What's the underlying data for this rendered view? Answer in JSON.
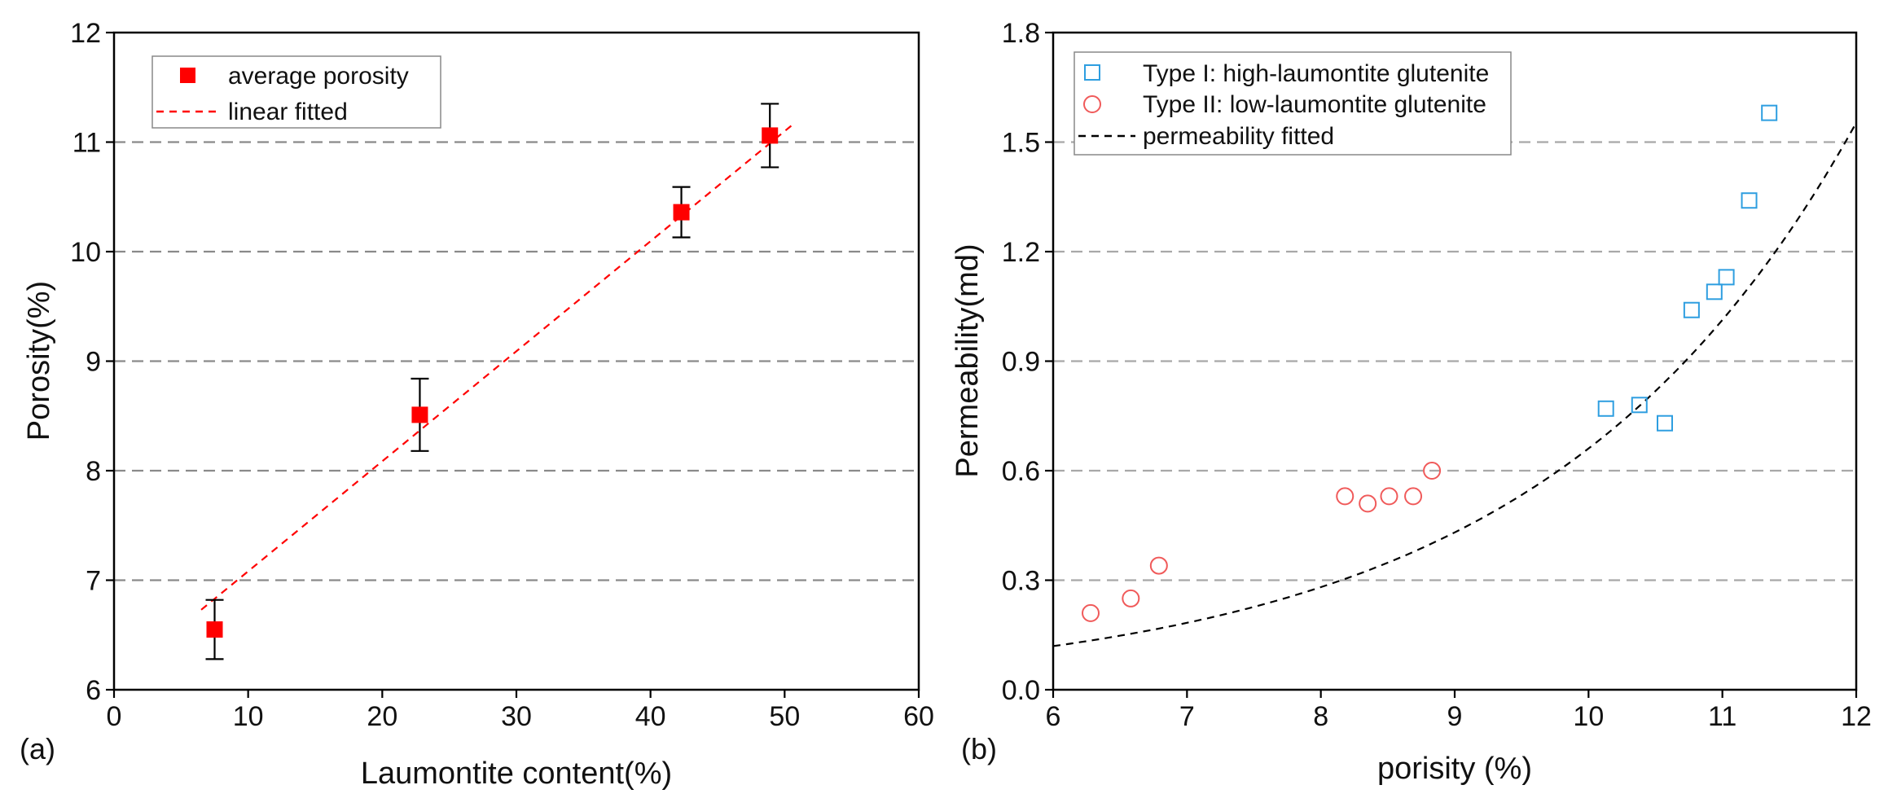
{
  "chart_data": [
    {
      "type": "scatter",
      "panel_label": "(a)",
      "xlabel": "Laumontite content(%)",
      "ylabel": "Porosity(%)",
      "xlim": [
        0,
        60
      ],
      "ylim": [
        6,
        12
      ],
      "xticks": [
        "0",
        "10",
        "20",
        "30",
        "40",
        "50",
        "60"
      ],
      "yticks": [
        "6",
        "7",
        "8",
        "9",
        "10",
        "11",
        "12"
      ],
      "grid": "horizontal dashed",
      "legend_position": "top-left",
      "series": [
        {
          "name": "average porosity",
          "marker": "filled-square",
          "color": "#ff0000",
          "x": [
            7.5,
            22.8,
            42.3,
            48.9
          ],
          "y": [
            6.55,
            8.51,
            10.36,
            11.06
          ],
          "error": [
            0.27,
            0.33,
            0.23,
            0.29
          ]
        },
        {
          "name": "linear fitted",
          "style": "dashed",
          "color": "#ff0000",
          "x": [
            6.5,
            50.8
          ],
          "y": [
            6.73,
            11.18
          ]
        }
      ]
    },
    {
      "type": "scatter",
      "panel_label": "(b)",
      "xlabel": "porisity (%)",
      "ylabel": "Permeability(md)",
      "xlim": [
        6,
        12
      ],
      "ylim": [
        0,
        1.8
      ],
      "xticks": [
        "6",
        "7",
        "8",
        "9",
        "10",
        "11",
        "12"
      ],
      "yticks": [
        "0.0",
        "0.3",
        "0.6",
        "0.9",
        "1.2",
        "1.5",
        "1.8"
      ],
      "grid": "horizontal dashed",
      "legend_position": "top-left",
      "series": [
        {
          "name": "Type I: high-laumontite glutenite",
          "marker": "open-square",
          "color": "#2e9ee0",
          "x": [
            10.13,
            10.38,
            10.57,
            10.77,
            10.94,
            11.03,
            11.2,
            11.35
          ],
          "y": [
            0.77,
            0.78,
            0.73,
            1.04,
            1.09,
            1.13,
            1.34,
            1.58
          ]
        },
        {
          "name": "Type II: low-laumontite glutenite",
          "marker": "open-circle",
          "color": "#f05a5a",
          "x": [
            6.28,
            6.58,
            6.79,
            8.18,
            8.35,
            8.51,
            8.69,
            8.83
          ],
          "y": [
            0.21,
            0.25,
            0.34,
            0.53,
            0.51,
            0.53,
            0.53,
            0.6
          ]
        },
        {
          "name": "permeability fitted",
          "style": "dashed",
          "color": "#000000",
          "curve": "exponential",
          "a": 0.0092,
          "b": 0.4274,
          "x_range": [
            6,
            12
          ]
        }
      ]
    }
  ]
}
